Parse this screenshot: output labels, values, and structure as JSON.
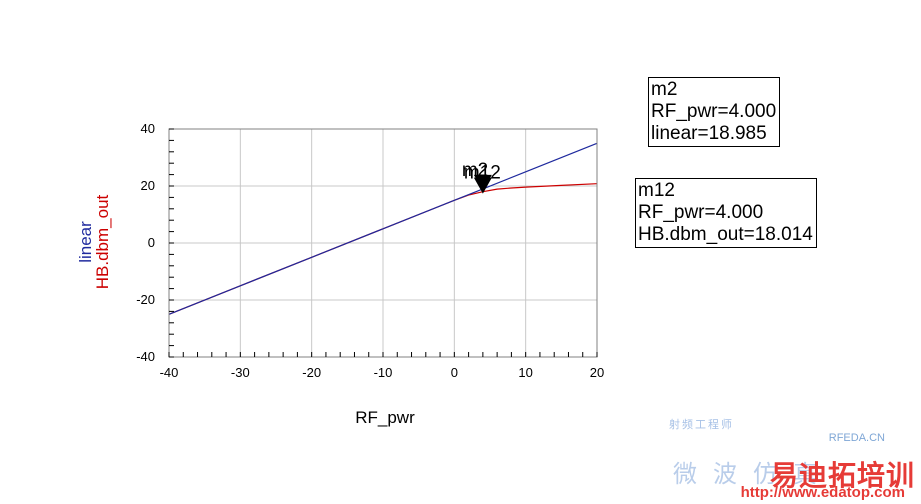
{
  "chart_data": {
    "type": "line",
    "xlabel": "RF_pwr",
    "ylabels": [
      "linear",
      "HB.dbm_out"
    ],
    "xlim": [
      -40,
      20
    ],
    "ylim": [
      -40,
      40
    ],
    "x_ticks": [
      -40,
      -30,
      -20,
      -10,
      0,
      10,
      20
    ],
    "y_ticks": [
      40,
      20,
      0,
      -20,
      -40
    ],
    "grid": true,
    "series": [
      {
        "name": "linear",
        "color": "#1f2a9e",
        "x": [
          -40,
          -30,
          -20,
          -10,
          0,
          4,
          10,
          20
        ],
        "y": [
          -25,
          -15,
          -5,
          5,
          15,
          18.985,
          25,
          35
        ]
      },
      {
        "name": "HB.dbm_out",
        "color": "#cc0000",
        "x": [
          -40,
          -30,
          -20,
          -10,
          -2,
          0,
          2,
          4,
          6,
          8,
          10,
          15,
          20
        ],
        "y": [
          -25,
          -15,
          -5,
          5,
          13,
          15,
          16.8,
          18.014,
          18.9,
          19.3,
          19.6,
          20.2,
          20.8
        ]
      }
    ],
    "markers": [
      {
        "id": "m2",
        "x": 4.0,
        "y": 18.985,
        "lines": [
          "m2",
          "RF_pwr=4.000",
          "linear=18.985"
        ]
      },
      {
        "id": "m12",
        "x": 4.0,
        "y": 18.014,
        "lines": [
          "m12",
          "RF_pwr=4.000",
          "HB.dbm_out=18.014"
        ]
      }
    ]
  },
  "watermark": {
    "rfeda": "RFEDA.CN",
    "cn_small": "射频工程师",
    "cn_big": "微波仿真",
    "brand": "易迪拓培训",
    "url": "http://www.edatop.com"
  }
}
